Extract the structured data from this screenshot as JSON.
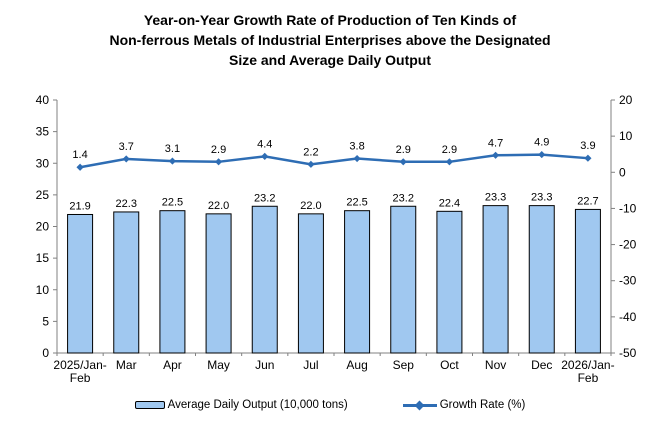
{
  "title": "Year-on-Year Growth Rate of Production of Ten Kinds of\nNon-ferrous Metals of Industrial Enterprises above the Designated\nSize and Average Daily Output",
  "chart_data": {
    "type": "bar",
    "subtype": "combo bar+line, dual y-axis",
    "title": "Year-on-Year Growth Rate of Production of Ten Kinds of Non-ferrous Metals of Industrial Enterprises above the Designated Size and Average Daily Output",
    "categories": [
      "2025/Jan-\nFeb",
      "Mar",
      "Apr",
      "May",
      "Jun",
      "Jul",
      "Aug",
      "Sep",
      "Oct",
      "Nov",
      "Dec",
      "2026/Jan-\nFeb"
    ],
    "series": [
      {
        "name": "Average Daily Output (10,000 tons)",
        "chart_type": "bar",
        "axis": "left",
        "values": [
          21.9,
          22.3,
          22.5,
          22.0,
          23.2,
          22.0,
          22.5,
          23.2,
          22.4,
          23.3,
          23.3,
          22.7
        ],
        "fill": "#A0C8F0",
        "stroke": "#000000"
      },
      {
        "name": "Growth Rate (%)",
        "chart_type": "line",
        "axis": "right",
        "values": [
          1.4,
          3.7,
          3.1,
          2.9,
          4.4,
          2.2,
          3.8,
          2.9,
          2.9,
          4.7,
          4.9,
          3.9
        ],
        "color": "#2E6DB4",
        "marker": "diamond"
      }
    ],
    "left_axis": {
      "min": 0,
      "max": 40,
      "step": 5
    },
    "right_axis": {
      "min": -50,
      "max": 20,
      "step": 10
    },
    "grid": false,
    "value_labels": true,
    "legend_position": "bottom",
    "axis_color": "#808080"
  }
}
